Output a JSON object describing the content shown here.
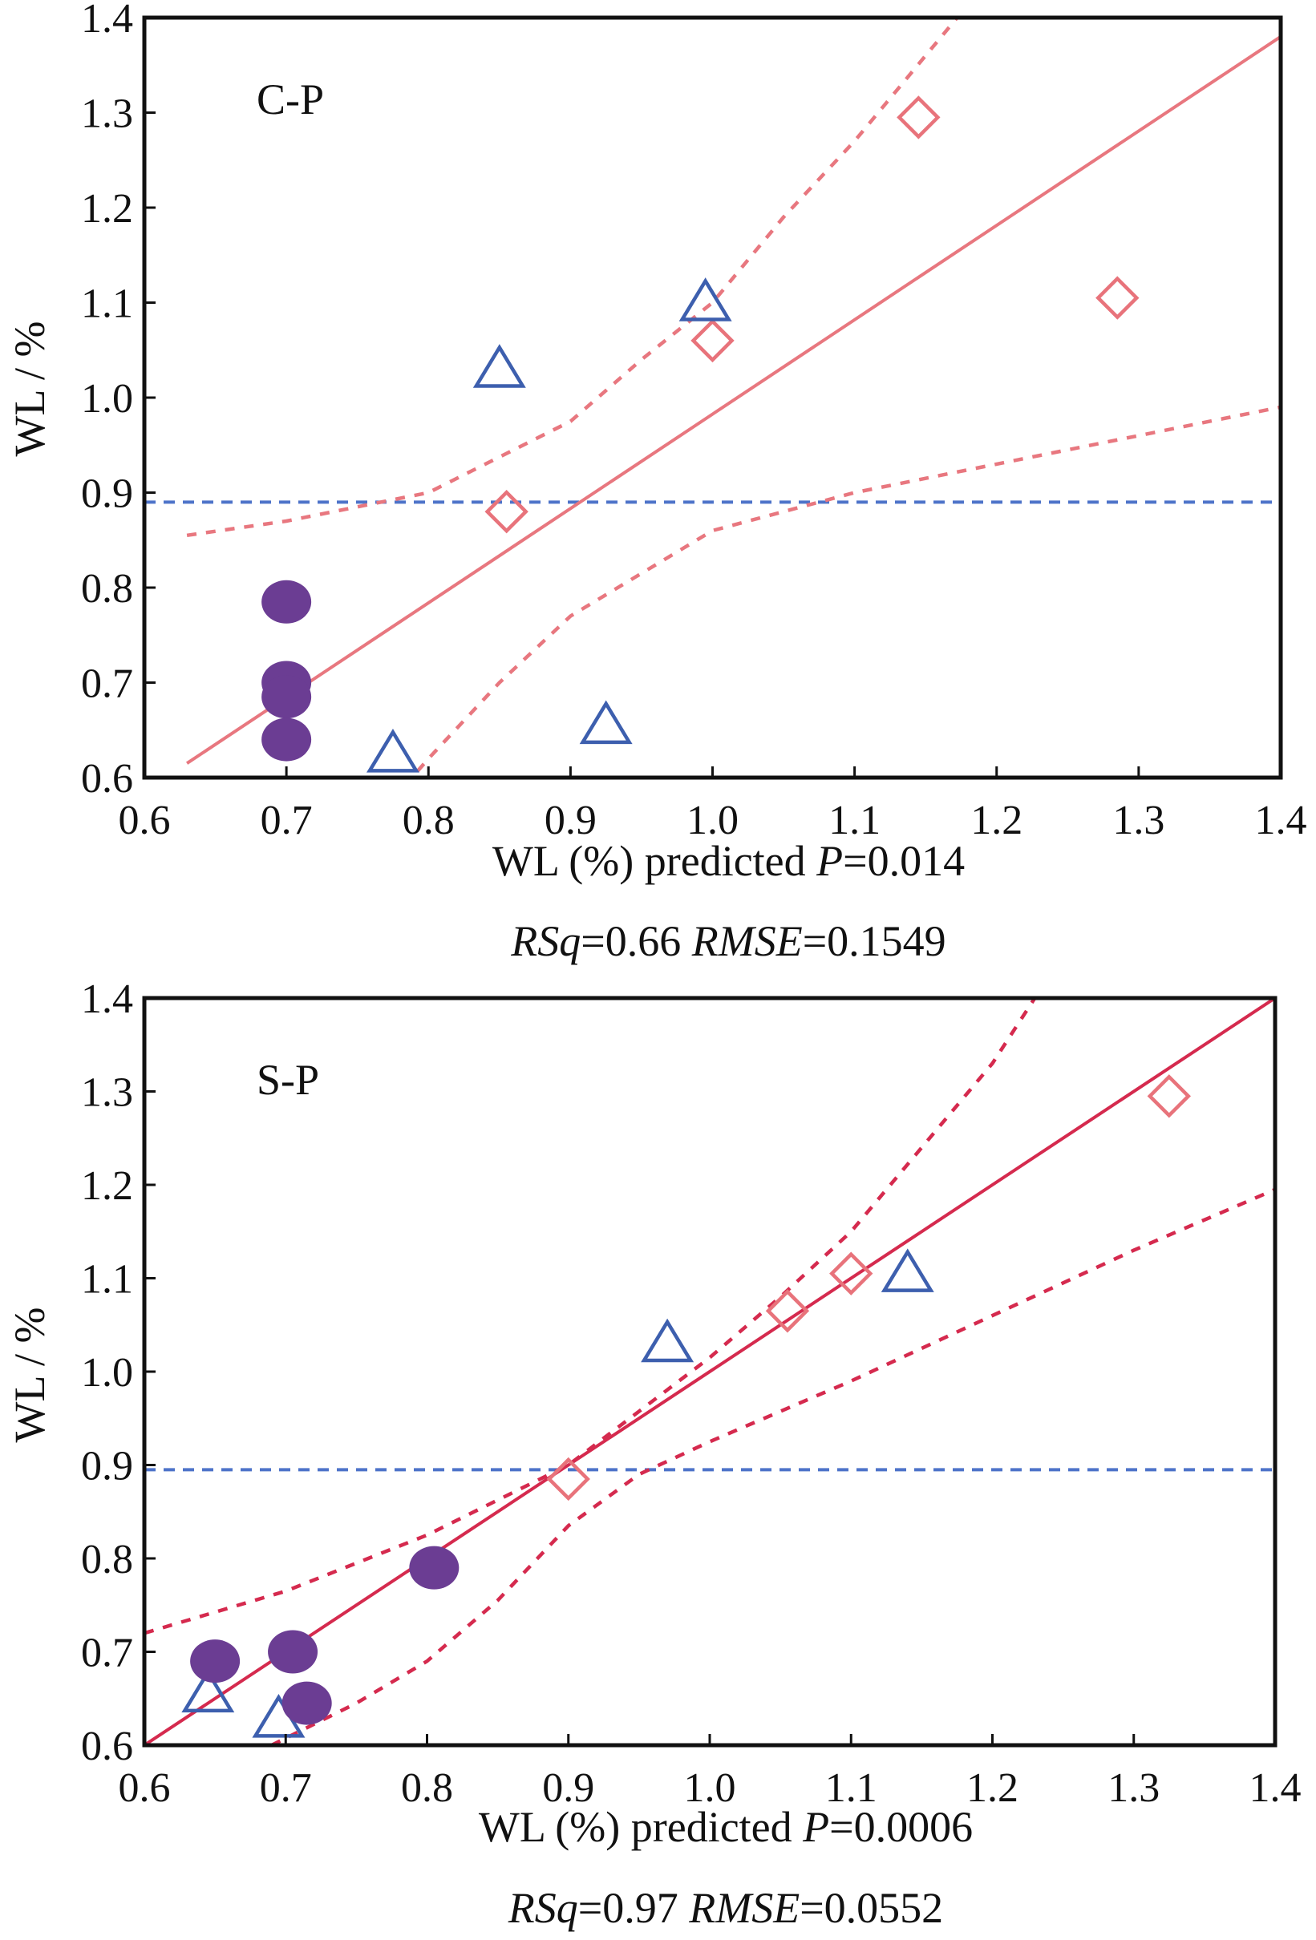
{
  "colors": {
    "frame": "#111111",
    "cp_fit": "#e8777f",
    "sp_fit": "#d52a4e",
    "threshold": "#4d73c9",
    "diamond": "#e8737b",
    "triangle": "#3d5fae",
    "circle": "#6b3d93"
  },
  "chart_data": [
    {
      "type": "scatter",
      "panel_label": "C-P",
      "xlim": [
        0.6,
        1.4
      ],
      "ylim": [
        0.6,
        1.4
      ],
      "x_ticks": [
        "0.6",
        "0.7",
        "0.8",
        "0.9",
        "1.0",
        "1.1",
        "1.2",
        "1.3",
        "1.4"
      ],
      "y_ticks": [
        "0.6",
        "0.7",
        "0.8",
        "0.9",
        "1.0",
        "1.1",
        "1.2",
        "1.3",
        "1.4"
      ],
      "ylabel": "WL / %",
      "xlabel_lines": [
        [
          "WL (%) predicted ",
          "P",
          "=0.014"
        ],
        [
          "RSq",
          "=0.66 ",
          "RMSE",
          "=0.1549"
        ]
      ],
      "threshold_y": 0.89,
      "fit": {
        "line": [
          [
            0.63,
            0.615
          ],
          [
            1.4,
            1.38
          ]
        ],
        "upper_ci": [
          [
            0.63,
            0.855
          ],
          [
            0.7,
            0.87
          ],
          [
            0.8,
            0.9
          ],
          [
            0.9,
            0.975
          ],
          [
            0.95,
            1.04
          ],
          [
            1.0,
            1.1
          ],
          [
            1.05,
            1.19
          ],
          [
            1.1,
            1.27
          ],
          [
            1.15,
            1.36
          ],
          [
            1.2,
            1.45
          ]
        ],
        "lower_ci": [
          [
            0.73,
            0.5
          ],
          [
            0.8,
            0.62
          ],
          [
            0.85,
            0.7
          ],
          [
            0.9,
            0.77
          ],
          [
            1.0,
            0.86
          ],
          [
            1.1,
            0.9
          ],
          [
            1.2,
            0.93
          ],
          [
            1.3,
            0.96
          ],
          [
            1.4,
            0.99
          ]
        ]
      },
      "series": [
        {
          "marker": "diamond",
          "points": [
            [
              0.855,
              0.88
            ],
            [
              1.0,
              1.06
            ],
            [
              1.145,
              1.295
            ],
            [
              1.285,
              1.105
            ]
          ]
        },
        {
          "marker": "triangle",
          "points": [
            [
              0.775,
              0.625
            ],
            [
              0.85,
              1.03
            ],
            [
              0.925,
              0.655
            ],
            [
              0.995,
              1.1
            ]
          ]
        },
        {
          "marker": "circle",
          "points": [
            [
              0.7,
              0.785
            ],
            [
              0.7,
              0.7
            ],
            [
              0.7,
              0.685
            ],
            [
              0.7,
              0.64
            ]
          ]
        }
      ]
    },
    {
      "type": "scatter",
      "panel_label": "S-P",
      "xlim": [
        0.6,
        1.4
      ],
      "ylim": [
        0.6,
        1.4
      ],
      "x_ticks": [
        "0.6",
        "0.7",
        "0.8",
        "0.9",
        "1.0",
        "1.1",
        "1.2",
        "1.3",
        "1.4"
      ],
      "y_ticks": [
        "0.6",
        "0.7",
        "0.8",
        "0.9",
        "1.0",
        "1.1",
        "1.2",
        "1.3",
        "1.4"
      ],
      "ylabel": "WL / %",
      "xlabel_lines": [
        [
          "WL (%) predicted ",
          "P",
          "=0.0006"
        ],
        [
          "RSq",
          "=0.97 ",
          "RMSE",
          "=0.0552"
        ]
      ],
      "threshold_y": 0.895,
      "fit": {
        "line": [
          [
            0.6,
            0.6
          ],
          [
            1.4,
            1.4
          ]
        ],
        "upper_ci": [
          [
            0.6,
            0.72
          ],
          [
            0.7,
            0.765
          ],
          [
            0.8,
            0.825
          ],
          [
            0.9,
            0.9
          ],
          [
            1.0,
            1.015
          ],
          [
            1.05,
            1.08
          ],
          [
            1.1,
            1.15
          ],
          [
            1.15,
            1.24
          ],
          [
            1.2,
            1.33
          ],
          [
            1.23,
            1.4
          ]
        ],
        "lower_ci": [
          [
            0.69,
            0.6
          ],
          [
            0.75,
            0.645
          ],
          [
            0.8,
            0.69
          ],
          [
            0.85,
            0.755
          ],
          [
            0.9,
            0.835
          ],
          [
            0.95,
            0.89
          ],
          [
            1.0,
            0.925
          ],
          [
            1.1,
            0.99
          ],
          [
            1.2,
            1.06
          ],
          [
            1.3,
            1.13
          ],
          [
            1.4,
            1.195
          ]
        ]
      },
      "series": [
        {
          "marker": "diamond",
          "points": [
            [
              0.9,
              0.885
            ],
            [
              1.055,
              1.065
            ],
            [
              1.1,
              1.105
            ],
            [
              1.325,
              1.295
            ]
          ]
        },
        {
          "marker": "triangle",
          "points": [
            [
              0.645,
              0.655
            ],
            [
              0.695,
              0.628
            ],
            [
              0.97,
              1.03
            ],
            [
              1.14,
              1.105
            ]
          ]
        },
        {
          "marker": "circle",
          "points": [
            [
              0.65,
              0.69
            ],
            [
              0.705,
              0.7
            ],
            [
              0.715,
              0.645
            ],
            [
              0.805,
              0.79
            ]
          ]
        }
      ]
    }
  ]
}
